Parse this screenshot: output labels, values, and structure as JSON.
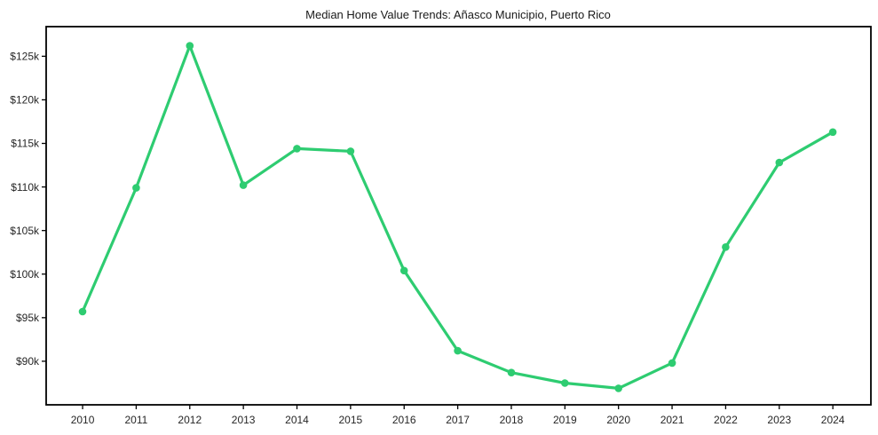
{
  "figure": {
    "background": "#ffffff"
  },
  "chart_data": {
    "type": "line",
    "title": "Median Home Value Trends: Añasco Municipio, Puerto Rico",
    "xlabel": "",
    "ylabel": "",
    "x": [
      2010,
      2011,
      2012,
      2013,
      2014,
      2015,
      2016,
      2017,
      2018,
      2019,
      2020,
      2021,
      2022,
      2023,
      2024
    ],
    "values": [
      95700,
      109900,
      126200,
      110200,
      114400,
      114100,
      100400,
      91200,
      88700,
      87500,
      86900,
      89800,
      103100,
      112800,
      116300
    ],
    "x_tick_labels": [
      "2010",
      "2011",
      "2012",
      "2013",
      "2014",
      "2015",
      "2016",
      "2017",
      "2018",
      "2019",
      "2020",
      "2021",
      "2022",
      "2023",
      "2024"
    ],
    "y_tick_values": [
      90000,
      95000,
      100000,
      105000,
      110000,
      115000,
      120000,
      125000
    ],
    "y_tick_labels": [
      "$90k",
      "$95k",
      "$100k",
      "$105k",
      "$110k",
      "$115k",
      "$120k",
      "$125k"
    ],
    "xlim": [
      2009.32,
      2024.71
    ],
    "ylim": [
      85000,
      128400
    ],
    "grid": false,
    "legend": "none",
    "line_color": "#2ecc71",
    "marker_color": "#2ecc71",
    "axis_color": "#000000",
    "tick_text_color": "#262626",
    "title_color": "#1a1a1a"
  }
}
